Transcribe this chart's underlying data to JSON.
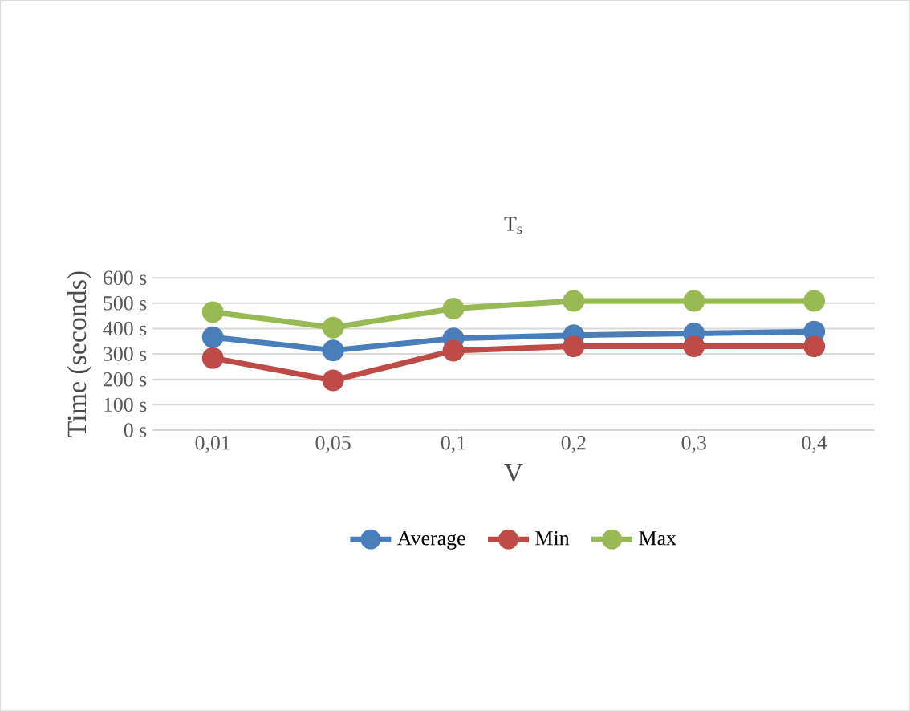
{
  "chart_data": {
    "type": "line",
    "title": "T$_{s}$",
    "xlabel": "V",
    "ylabel": "Time (seconds)",
    "categories": [
      "0,01",
      "0,05",
      "0,1",
      "0,2",
      "0,3",
      "0,4"
    ],
    "series": [
      {
        "name": "Average",
        "color": "#4a7ebb",
        "values": [
          366,
          314,
          361,
          374,
          381,
          388
        ]
      },
      {
        "name": "Min",
        "color": "#be4b48",
        "values": [
          284,
          196,
          313,
          330,
          330,
          330
        ]
      },
      {
        "name": "Max",
        "color": "#98b954",
        "values": [
          465,
          404,
          479,
          509,
          509,
          509
        ]
      }
    ],
    "ylim": [
      0,
      600
    ],
    "yticks": [
      {
        "value": 0,
        "label": "0 s"
      },
      {
        "value": 100,
        "label": "100 s"
      },
      {
        "value": 200,
        "label": "200 s"
      },
      {
        "value": 300,
        "label": "300 s"
      },
      {
        "value": 400,
        "label": "400 s"
      },
      {
        "value": 500,
        "label": "500 s"
      },
      {
        "value": 600,
        "label": "600 s"
      }
    ],
    "grid": "y",
    "legend": "bottom",
    "marker": "circle",
    "line_style": "solid"
  }
}
